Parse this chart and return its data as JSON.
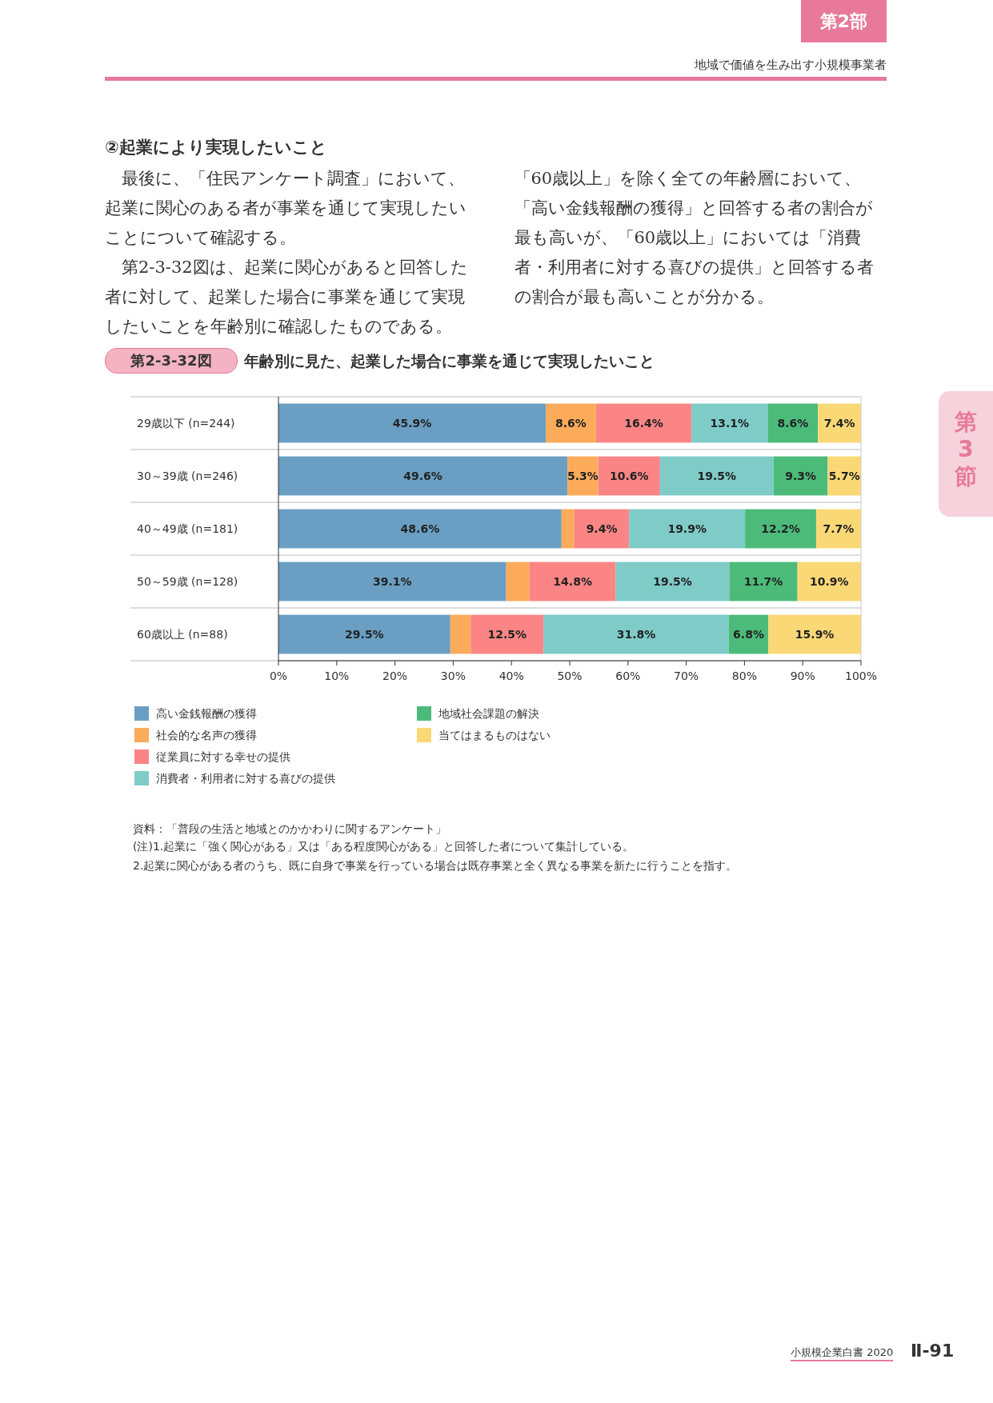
{
  "chart_data": {
    "type": "bar",
    "orientation": "horizontal",
    "stacked": true,
    "title": "年齢別に見た、起業した場合に事業を通じて実現したいこと",
    "subtitle": "第2-3-32図",
    "categories": [
      "29歳以下 (n=244)",
      "30～39歳 (n=246)",
      "40～49歳 (n=181)",
      "50～59歳 (n=128)",
      "60歳以上 (n=88)"
    ],
    "series": [
      {
        "name": "高い金銭報酬の獲得",
        "color": "#6a9fc3",
        "values": [
          45.9,
          49.6,
          48.6,
          39.1,
          29.5
        ],
        "value_labels": [
          "45.9%",
          "49.6%",
          "48.6%",
          "39.1%",
          "29.5%"
        ]
      },
      {
        "name": "社会的な名声の獲得",
        "color": "#fbab5a",
        "values": [
          8.6,
          5.3,
          2.2,
          4.0,
          3.5
        ],
        "value_labels": [
          "8.6%",
          "5.3%",
          null,
          null,
          null
        ]
      },
      {
        "name": "従業員に対する幸せの提供",
        "color": "#fb8585",
        "values": [
          16.4,
          10.6,
          9.4,
          14.8,
          12.5
        ],
        "value_labels": [
          "16.4%",
          "10.6%",
          "9.4%",
          "14.8%",
          "12.5%"
        ]
      },
      {
        "name": "消費者・利用者に対する喜びの提供",
        "color": "#7fcbc8",
        "values": [
          13.1,
          19.5,
          19.9,
          19.5,
          31.8
        ],
        "value_labels": [
          "13.1%",
          "19.5%",
          "19.9%",
          "19.5%",
          "31.8%"
        ]
      },
      {
        "name": "地域社会課題の解決",
        "color": "#4cbb7a",
        "values": [
          8.6,
          9.3,
          12.2,
          11.7,
          6.8
        ],
        "value_labels": [
          "8.6%",
          "9.3%",
          "12.2%",
          "11.7%",
          "6.8%"
        ]
      },
      {
        "name": "当てはまるものはない",
        "color": "#fbd876",
        "values": [
          7.4,
          5.7,
          7.7,
          10.9,
          15.9
        ],
        "value_labels": [
          "7.4%",
          "5.7%",
          "7.7%",
          "10.9%",
          "15.9%"
        ]
      }
    ],
    "xlim": [
      0,
      100
    ],
    "xticks": [
      {
        "value": 0,
        "label": "0%"
      },
      {
        "value": 10,
        "label": "10%"
      },
      {
        "value": 20,
        "label": "20%"
      },
      {
        "value": 30,
        "label": "30%"
      },
      {
        "value": 40,
        "label": "40%"
      },
      {
        "value": 50,
        "label": "50%"
      },
      {
        "value": 60,
        "label": "60%"
      },
      {
        "value": 70,
        "label": "70%"
      },
      {
        "value": 80,
        "label": "80%"
      },
      {
        "value": 90,
        "label": "90%"
      },
      {
        "value": 100,
        "label": "100%"
      }
    ],
    "legend": "bottom",
    "annotations": [
      "第2部",
      "地域で価値を生み出す小規模事業者",
      "②起業により実現したいこと",
      "最後に、「住民アンケート調査」において、起業に関心のある者が事業を通じて実現したいことについて確認する。",
      "第2-3-32図は、起業に関心があると回答した者に対して、起業した場合に事業を通じて実現したいことを年齢別に確認したものである。「60歳以上」を除く全ての年齢層において、「高い金銭報酬の獲得」と回答する者の割合が最も高いが、「60歳以上」においては「消費者・利用者に対する喜びの提供」と回答する者の割合が最も高いことが分かる。",
      "資料：「普段の生活と地域とのかかわりに関するアンケート」",
      "(注)1.起業に「強く関心がある」又は「ある程度関心がある」と回答した者について集計している。",
      "2.起業に関心がある者のうち、既に自身で事業を行っている場合は既存事業と全く異なる事業を新たに行うことを指す。",
      "第3節",
      "小規模企業白書 2020",
      "Ⅱ-91"
    ]
  }
}
